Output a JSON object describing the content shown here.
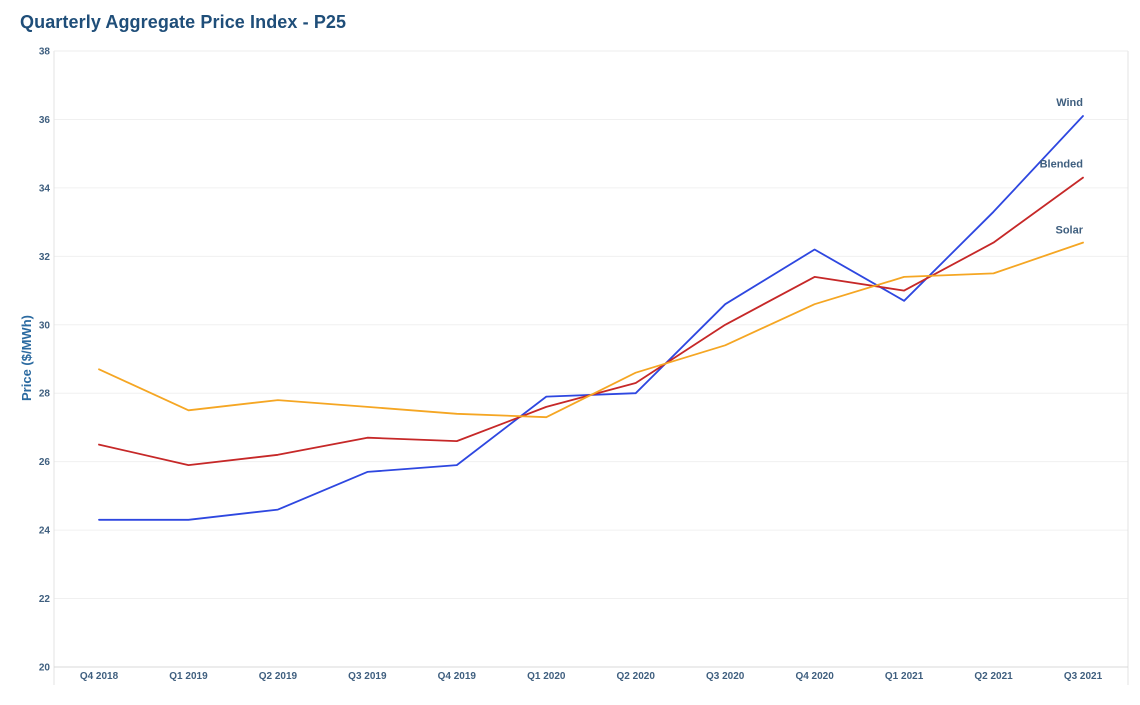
{
  "chart_data": {
    "type": "line",
    "title": "Quarterly Aggregate Price Index - P25",
    "xlabel": "",
    "ylabel": "Price ($/MWh)",
    "ylim": [
      20,
      38
    ],
    "yticks": [
      20,
      22,
      24,
      26,
      28,
      30,
      32,
      34,
      36,
      38
    ],
    "categories": [
      "Q4 2018",
      "Q1 2019",
      "Q2 2019",
      "Q3 2019",
      "Q4 2019",
      "Q1 2020",
      "Q2 2020",
      "Q3 2020",
      "Q4 2020",
      "Q1 2021",
      "Q2 2021",
      "Q3 2021"
    ],
    "grid": true,
    "legend": "end-of-line labels",
    "series": [
      {
        "name": "Wind",
        "color": "#2e47e0",
        "values": [
          24.3,
          24.3,
          24.6,
          25.7,
          25.9,
          27.9,
          28.0,
          30.6,
          32.2,
          30.7,
          33.3,
          36.1
        ]
      },
      {
        "name": "Blended",
        "color": "#c62828",
        "values": [
          26.5,
          25.9,
          26.2,
          26.7,
          26.6,
          27.6,
          28.3,
          30.0,
          31.4,
          31.0,
          32.4,
          34.3
        ]
      },
      {
        "name": "Solar",
        "color": "#f5a623",
        "values": [
          28.7,
          27.5,
          27.8,
          27.6,
          27.4,
          27.3,
          28.6,
          29.4,
          30.6,
          31.4,
          31.5,
          32.4
        ]
      }
    ]
  }
}
